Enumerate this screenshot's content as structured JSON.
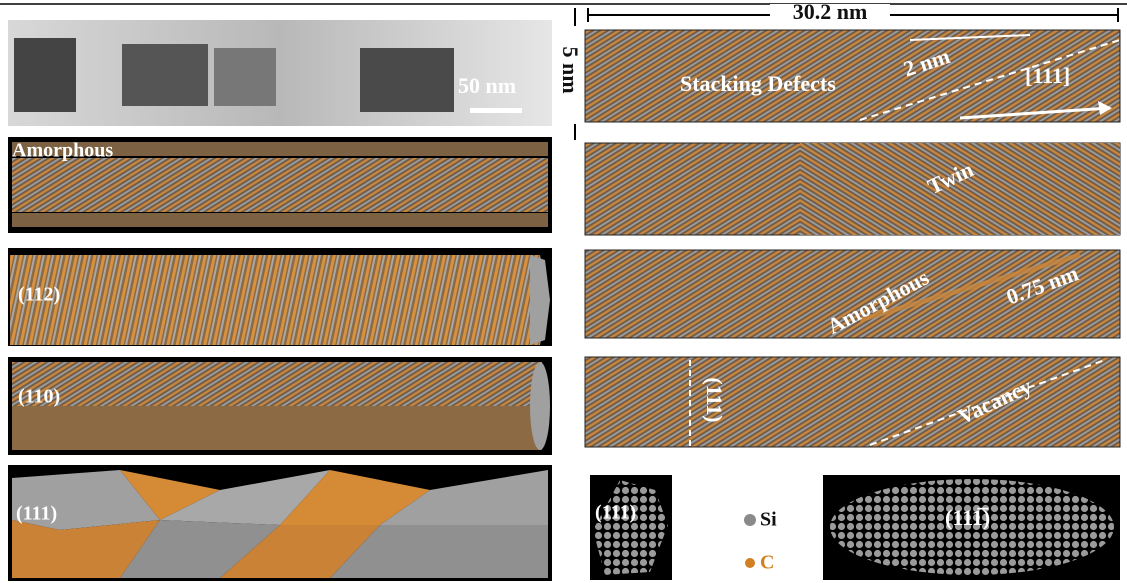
{
  "left": {
    "tem_scale": "50 nm",
    "amorphous": "Amorphous",
    "p112": "(112)",
    "p110": "(110)",
    "p111": "(111)"
  },
  "right": {
    "length": "30.2 nm",
    "width": "5 nm",
    "stacking": "Stacking Defects",
    "spacing": "2 nm",
    "direction": "[111]",
    "twin": "Twin",
    "amorphous": "Amorphous",
    "amorphous_width": "0.75 nm",
    "plane": "(111)",
    "vacancy": "Vacancy"
  },
  "bottom": {
    "small": "(111)",
    "si": "Si",
    "c": "C",
    "large": "(111̅)"
  }
}
